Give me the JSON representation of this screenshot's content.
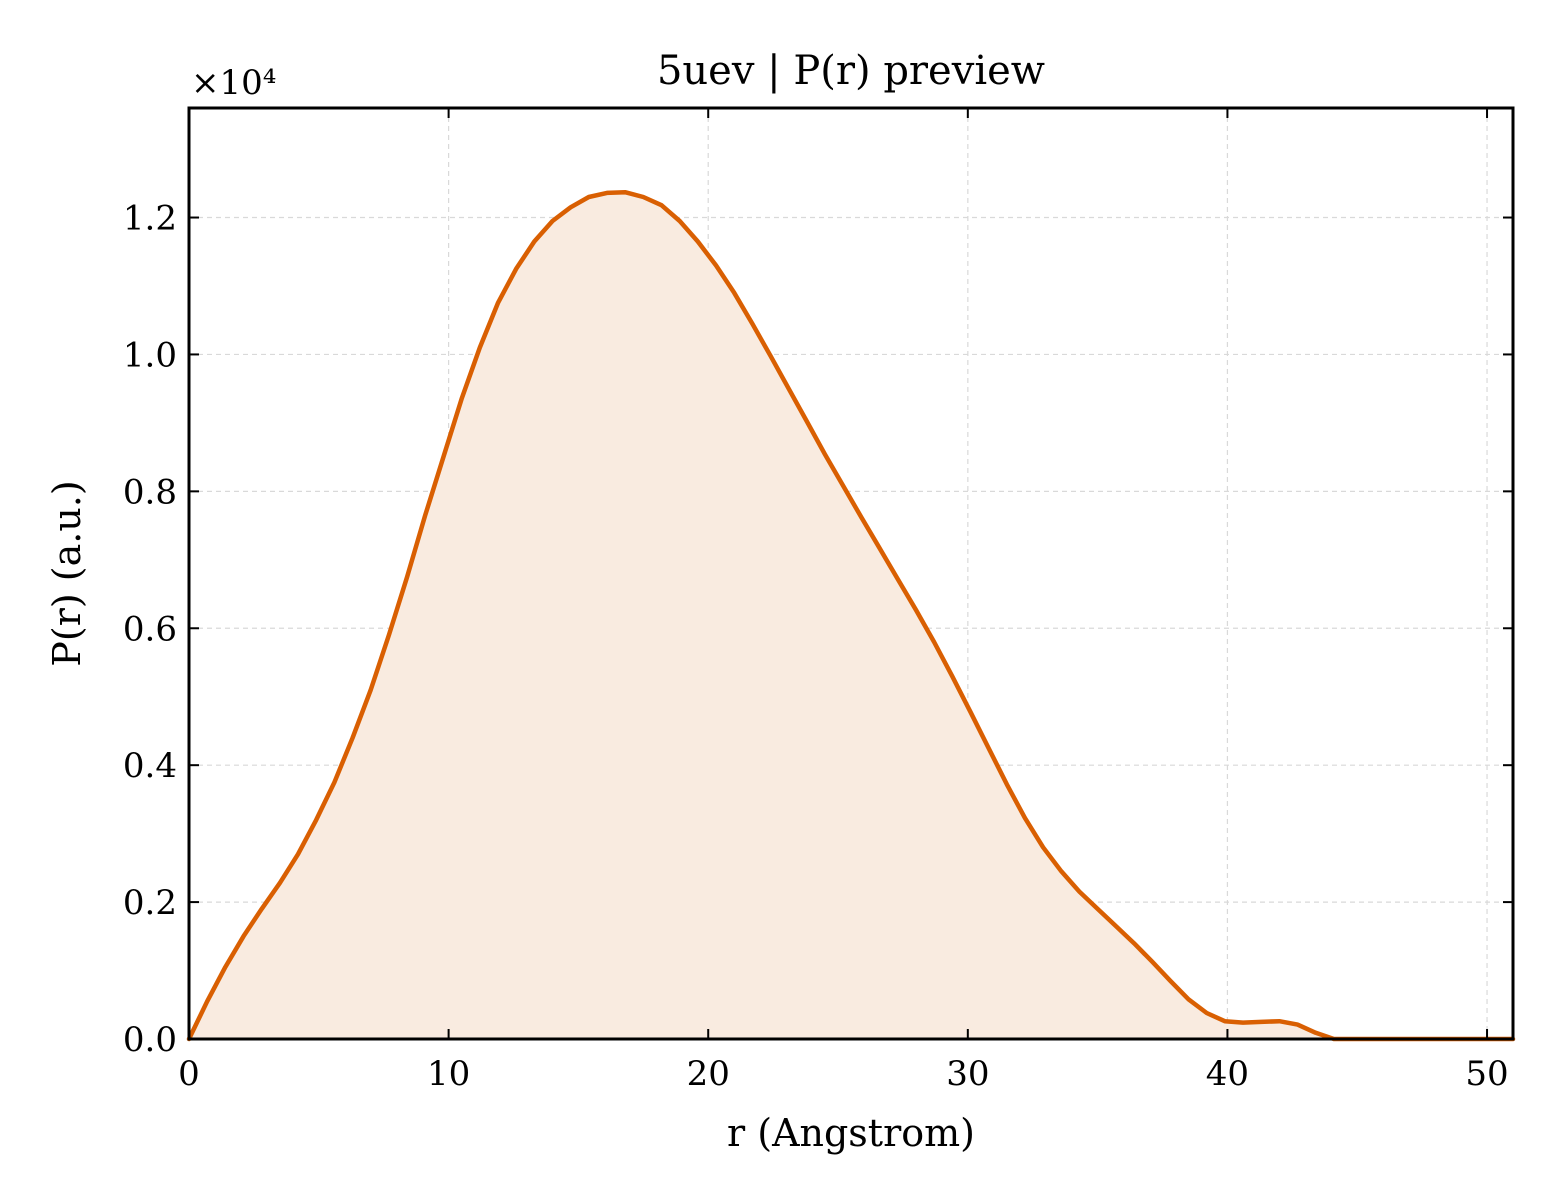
{
  "chart_data": {
    "type": "area",
    "title": "5uev | P(r) preview",
    "xlabel": "r (Angstrom)",
    "ylabel": "P(r) (a.u.)",
    "y_multiplier_label": "×10⁴",
    "xlim": [
      0,
      51.0
    ],
    "ylim": [
      0,
      13600
    ],
    "xticks": [
      0,
      10,
      20,
      30,
      40,
      50
    ],
    "xtick_labels": [
      "0",
      "10",
      "20",
      "30",
      "40",
      "50"
    ],
    "yticks": [
      0,
      2000,
      4000,
      6000,
      8000,
      10000,
      12000
    ],
    "ytick_labels": [
      "0.0",
      "0.2",
      "0.4",
      "0.6",
      "0.8",
      "1.0",
      "1.2"
    ],
    "grid": true,
    "series": [
      {
        "color": "#d95f02",
        "fill_color": "#f9ebe0",
        "x": [
          0,
          0.7,
          1.4,
          2.1,
          2.8,
          3.5,
          4.2,
          4.9,
          5.6,
          6.3,
          7.0,
          7.7,
          8.4,
          9.1,
          9.8,
          10.5,
          11.2,
          11.9,
          12.6,
          13.3,
          14.0,
          14.7,
          15.4,
          16.1,
          16.8,
          17.5,
          18.2,
          18.9,
          19.6,
          20.3,
          21.0,
          21.7,
          22.4,
          23.1,
          23.8,
          24.5,
          25.2,
          25.9,
          26.6,
          27.3,
          28.0,
          28.7,
          29.4,
          30.1,
          30.8,
          31.5,
          32.2,
          32.9,
          33.6,
          34.3,
          35.0,
          35.7,
          36.4,
          37.1,
          37.8,
          38.5,
          39.2,
          39.9,
          40.6,
          41.3,
          42.0,
          42.7,
          43.4,
          44.1,
          44.8,
          45.5,
          46.2,
          46.9,
          47.6,
          48.3,
          49.0,
          49.7,
          50.4,
          51.0
        ],
        "values": [
          0,
          550,
          1050,
          1500,
          1900,
          2280,
          2700,
          3200,
          3750,
          4400,
          5100,
          5900,
          6750,
          7650,
          8500,
          9350,
          10100,
          10750,
          11250,
          11650,
          11950,
          12150,
          12300,
          12360,
          12370,
          12300,
          12180,
          11950,
          11650,
          11300,
          10900,
          10450,
          9980,
          9500,
          9020,
          8540,
          8080,
          7620,
          7170,
          6720,
          6270,
          5800,
          5300,
          4780,
          4250,
          3720,
          3230,
          2800,
          2450,
          2150,
          1900,
          1650,
          1400,
          1130,
          850,
          580,
          380,
          260,
          240,
          250,
          260,
          210,
          90,
          0,
          0,
          0,
          0,
          0,
          0,
          0,
          0,
          0,
          0,
          0
        ]
      }
    ]
  }
}
